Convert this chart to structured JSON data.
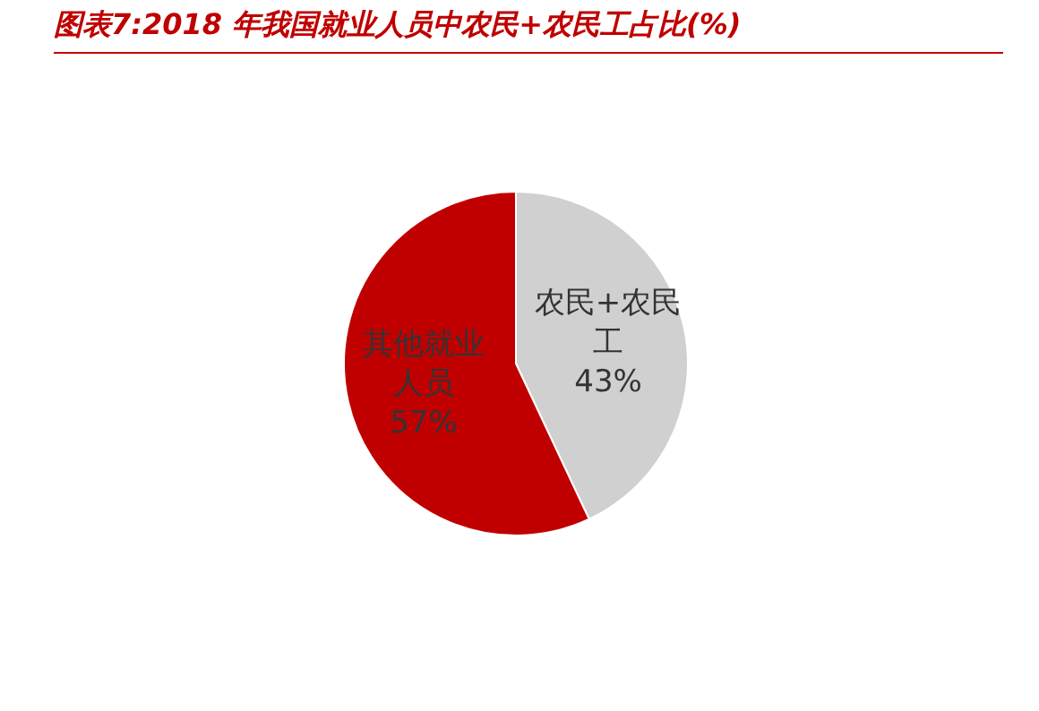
{
  "chart_data": {
    "type": "pie",
    "title": "图表7:2018 年我国就业人员中农民+农民工占比(%)",
    "categories": [
      "农民+农民工",
      "其他就业人员"
    ],
    "values": [
      43,
      57
    ],
    "colors": [
      "#d0d0d0",
      "#c00000"
    ],
    "value_labels": [
      "43%",
      "57%"
    ],
    "legend": false
  }
}
